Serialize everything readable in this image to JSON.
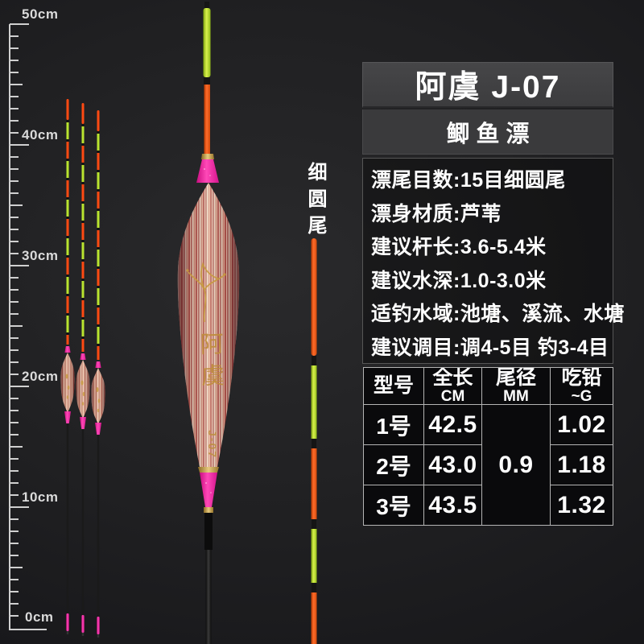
{
  "header": {
    "title": "阿虞 J-07",
    "subtitle": "鲫鱼漂"
  },
  "specs": [
    "漂尾目数:15目细圆尾",
    "漂身材质:芦苇",
    "建议杆长:3.6-5.4米",
    "建议水深:1.0-3.0米",
    "适钓水域:池塘、溪流、水塘",
    "建议调目:调4-5目 钓3-4目"
  ],
  "table": {
    "headers": [
      {
        "main": "型号",
        "sub": ""
      },
      {
        "main": "全长",
        "sub": "CM"
      },
      {
        "main": "尾径",
        "sub": "MM"
      },
      {
        "main": "吃铅",
        "sub": "~G"
      }
    ],
    "tail_diameter": "0.9",
    "rows": [
      {
        "model": "1号",
        "length": "42.5",
        "weight": "1.02"
      },
      {
        "model": "2号",
        "length": "43.0",
        "weight": "1.18"
      },
      {
        "model": "3号",
        "length": "43.5",
        "weight": "1.32"
      }
    ]
  },
  "ruler": {
    "labels": [
      "50cm",
      "40cm",
      "30cm",
      "20cm",
      "10cm",
      "0cm"
    ]
  },
  "tail_type_label": "细圆尾",
  "big_float": {
    "calligraphy": "阿虞",
    "model_code": "J-07"
  },
  "colors": {
    "green": "#b9e42f",
    "orange": "#ff4a12",
    "pink": "#ff25a1",
    "gold": "#c79a3f",
    "panel_gray": "#3e3e40",
    "table_border": "#b4b4b4",
    "ruler_gray": "#d0d0d0"
  }
}
